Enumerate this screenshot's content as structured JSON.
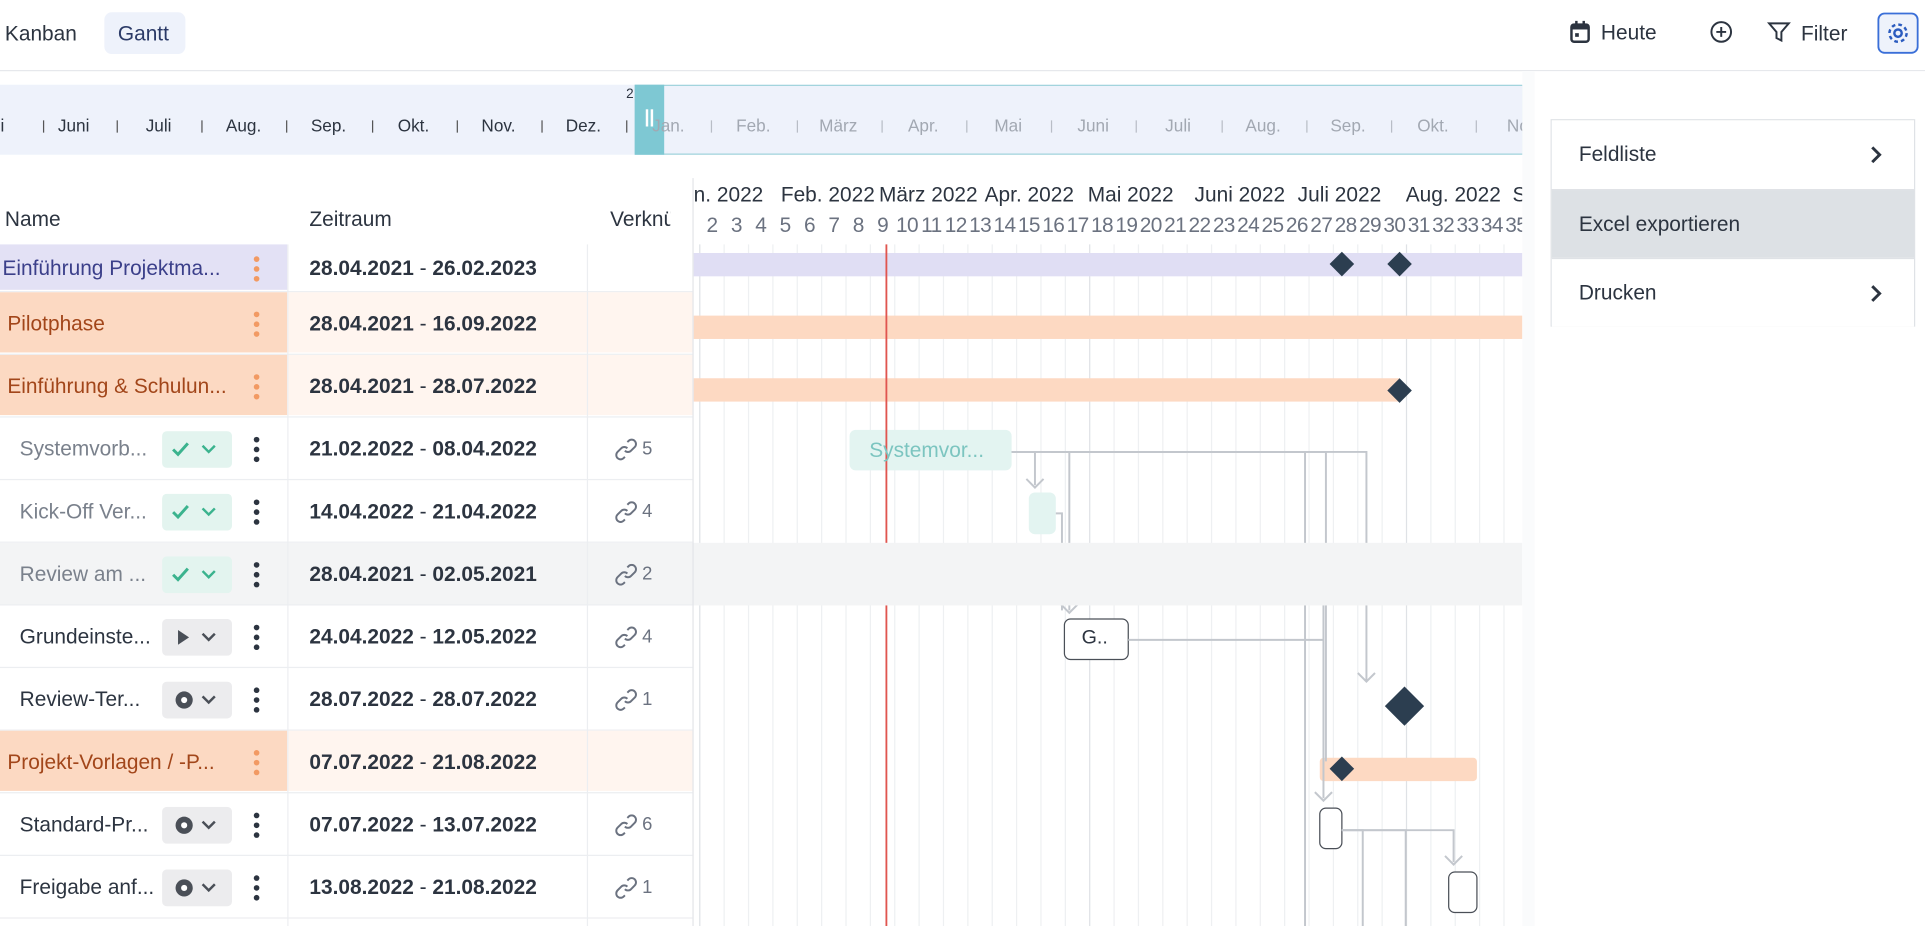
{
  "tabs": [
    "Kanban",
    "Gantt"
  ],
  "toolbar": {
    "today": "Heute",
    "filter": "Filter"
  },
  "overview": {
    "year_marker": "2",
    "months": [
      "i",
      "Juni",
      "Juli",
      "Aug.",
      "Sep.",
      "Okt.",
      "Nov.",
      "Dez.",
      "Jan.",
      "Feb.",
      "März",
      "Apr.",
      "Mai",
      "Juni",
      "Juli",
      "Aug.",
      "Sep.",
      "Okt.",
      "No"
    ]
  },
  "columns": [
    "Name",
    "Zeitraum",
    "Verknü"
  ],
  "gantt": {
    "months": [
      "n. 2022",
      "Feb. 2022",
      "März 2022",
      "Apr. 2022",
      "Mai 2022",
      "Juni 2022",
      "Juli 2022",
      "Aug. 2022",
      "S"
    ],
    "weeks": [
      "2",
      "3",
      "4",
      "5",
      "6",
      "7",
      "8",
      "9",
      "10",
      "11",
      "12",
      "13",
      "14",
      "15",
      "16",
      "17",
      "18",
      "19",
      "20",
      "21",
      "22",
      "23",
      "24",
      "25",
      "26",
      "27",
      "28",
      "29",
      "30",
      "31",
      "32",
      "33",
      "34",
      "35"
    ],
    "bar_labels": [
      "Systemvor...",
      "G.."
    ]
  },
  "rows": [
    {
      "name": "Einführung Projektma...",
      "start": "28.04.2021",
      "end": "26.02.2023"
    },
    {
      "name": "Pilotphase",
      "start": "28.04.2021",
      "end": "16.09.2022"
    },
    {
      "name": "Einführung & Schulun...",
      "start": "28.04.2021",
      "end": "28.07.2022"
    },
    {
      "name": "Systemvorb...",
      "start": "21.02.2022",
      "end": "08.04.2022",
      "links": "5"
    },
    {
      "name": "Kick-Off Ver...",
      "start": "14.04.2022",
      "end": "21.04.2022",
      "links": "4"
    },
    {
      "name": "Review am ...",
      "start": "28.04.2021",
      "end": "02.05.2021",
      "links": "2"
    },
    {
      "name": "Grundeinste...",
      "start": "24.04.2022",
      "end": "12.05.2022",
      "links": "4"
    },
    {
      "name": "Review-Ter...",
      "start": "28.07.2022",
      "end": "28.07.2022",
      "links": "1"
    },
    {
      "name": "Projekt-Vorlagen / -P...",
      "start": "07.07.2022",
      "end": "21.08.2022"
    },
    {
      "name": "Standard-Pr...",
      "start": "07.07.2022",
      "end": "13.07.2022",
      "links": "6"
    },
    {
      "name": "Freigabe anf...",
      "start": "13.08.2022",
      "end": "21.08.2022",
      "links": "1"
    }
  ],
  "menu": [
    "Feldliste",
    "Excel exportieren",
    "Drucken"
  ]
}
